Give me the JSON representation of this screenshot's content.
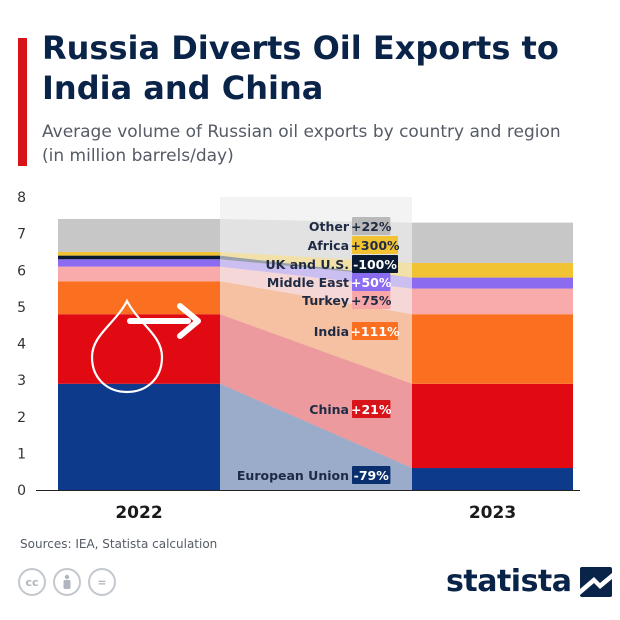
{
  "header": {
    "title": "Russia Diverts Oil Exports to India and China",
    "subtitle": "Average volume of Russian oil exports by country and region (in million barrels/day)"
  },
  "footer": {
    "source": "Sources: IEA, Statista calculation",
    "brand": "statista",
    "license_icons": [
      "cc",
      "by",
      "="
    ]
  },
  "colors": {
    "accent": "#d7141a",
    "title": "#0a2348"
  },
  "chart_data": {
    "type": "bar",
    "stacked": true,
    "categories": [
      "2022",
      "2023"
    ],
    "ylim": [
      0,
      8
    ],
    "yticks": [
      0,
      1,
      2,
      3,
      4,
      5,
      6,
      7,
      8
    ],
    "grid": false,
    "series": [
      {
        "name": "European Union",
        "values": [
          2.9,
          0.6
        ],
        "change": "-79%",
        "color": "#0e3a8c",
        "badge": "#0a2f6e"
      },
      {
        "name": "China",
        "values": [
          1.9,
          2.3
        ],
        "change": "+21%",
        "color": "#e20a12",
        "badge": "#d7141a"
      },
      {
        "name": "India",
        "values": [
          0.9,
          1.9
        ],
        "change": "+111%",
        "color": "#fb7020",
        "badge": "#fb7020"
      },
      {
        "name": "Turkey",
        "values": [
          0.4,
          0.7
        ],
        "change": "+75%",
        "color": "#f9abab",
        "badge": "#f7a7a7"
      },
      {
        "name": "Middle East",
        "values": [
          0.2,
          0.3
        ],
        "change": "+50%",
        "color": "#8b6cf0",
        "badge": "#8b6cf0"
      },
      {
        "name": "UK and U.S.",
        "values": [
          0.1,
          0.0
        ],
        "change": "-100%",
        "color": "#0a1a33",
        "badge": "#0a1a33"
      },
      {
        "name": "Africa",
        "values": [
          0.1,
          0.4
        ],
        "change": "+300%",
        "color": "#f1c232",
        "badge": "#f1c232"
      },
      {
        "name": "Other",
        "values": [
          0.9,
          1.1
        ],
        "change": "+22%",
        "color": "#c7c7c7",
        "badge": "#b9b9b9"
      }
    ]
  }
}
